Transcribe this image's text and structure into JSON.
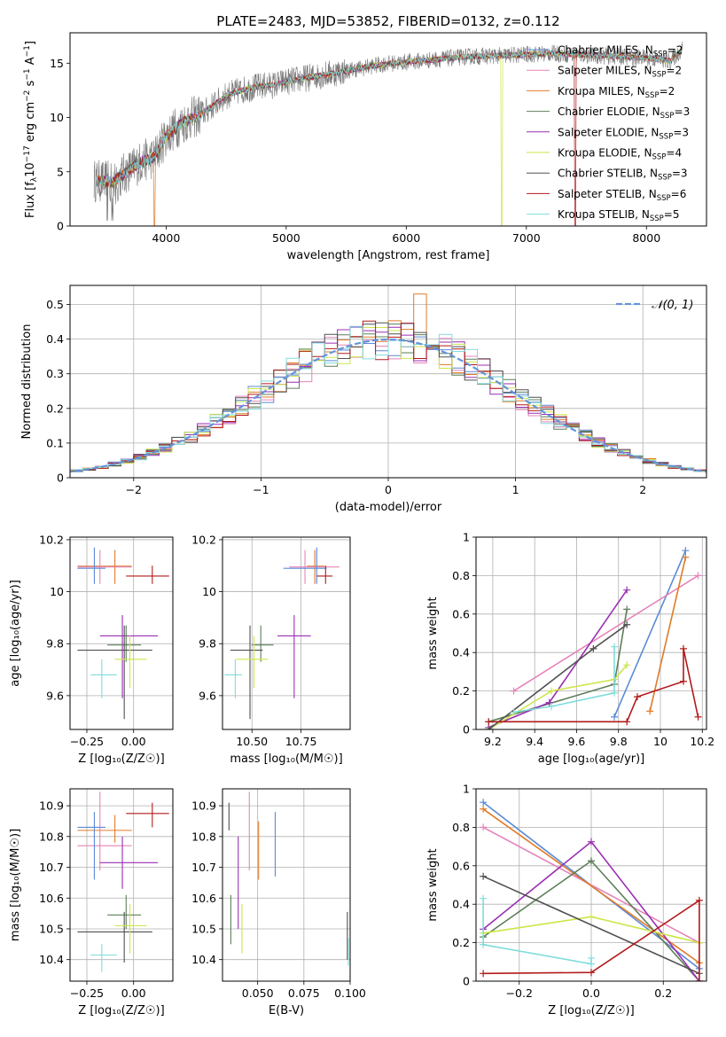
{
  "figure": {
    "title": "PLATE=2483, MJD=53852, FIBERID=0132, z=0.112"
  },
  "colors": {
    "Chabrier MILES": "#5b8bd6",
    "Salpeter MILES": "#e584b9",
    "Kroupa MILES": "#e07b28",
    "Chabrier ELODIE": "#5e7f5a",
    "Salpeter ELODIE": "#9a2fb2",
    "Kroupa ELODIE": "#cde64a",
    "Chabrier STELIB": "#505050",
    "Salpeter STELIB": "#b21a1a",
    "Kroupa STELIB": "#80dcdc",
    "gauss": "#6494dc",
    "grid": "#b0b0b0"
  },
  "chart_data": [
    {
      "id": "spectrum",
      "type": "line",
      "title": "PLATE=2483, MJD=53852, FIBERID=0132, z=0.112",
      "xlabel": "wavelength [Angstrom, rest frame]",
      "ylabel_parts": [
        "Flux [f",
        "λ",
        "10",
        "−17",
        " erg cm",
        "−2",
        " s",
        "−1",
        " A",
        "−1",
        "]"
      ],
      "xlim": [
        3200,
        8500
      ],
      "ylim": [
        0,
        17.8
      ],
      "xticks": [
        4000,
        5000,
        6000,
        7000,
        8000
      ],
      "yticks": [
        0,
        5,
        10,
        15
      ],
      "grid": false,
      "legend_position": "right",
      "legend": [
        {
          "name": "Chabrier MILES",
          "nssp": "2"
        },
        {
          "name": "Salpeter MILES",
          "nssp": "2"
        },
        {
          "name": "Kroupa MILES",
          "nssp": "2"
        },
        {
          "name": "Chabrier ELODIE",
          "nssp": "3"
        },
        {
          "name": "Salpeter ELODIE",
          "nssp": "3"
        },
        {
          "name": "Kroupa ELODIE",
          "nssp": "4"
        },
        {
          "name": "Chabrier STELIB",
          "nssp": "3"
        },
        {
          "name": "Salpeter STELIB",
          "nssp": "6"
        },
        {
          "name": "Kroupa STELIB",
          "nssp": "5"
        }
      ],
      "nssp_label": "N",
      "nssp_sub": "SSP",
      "continuum": {
        "x": [
          3400,
          3550,
          3700,
          3800,
          3900,
          4000,
          4100,
          4200,
          4300,
          4400,
          4500,
          4600,
          4700,
          4800,
          4900,
          5000,
          5200,
          5400,
          5600,
          5800,
          6000,
          6200,
          6500,
          6800,
          7000,
          7200,
          7400,
          7600,
          7800,
          8000,
          8200,
          8300
        ],
        "y": [
          4.2,
          4.0,
          5.2,
          6.0,
          6.3,
          8.3,
          9.2,
          9.9,
          10.3,
          11.2,
          12.0,
          12.4,
          12.7,
          12.9,
          13.0,
          13.3,
          13.7,
          14.1,
          14.5,
          14.9,
          15.1,
          15.3,
          15.6,
          15.7,
          15.8,
          15.9,
          15.8,
          15.7,
          15.6,
          15.5,
          15.2,
          16.3
        ]
      }
    },
    {
      "id": "residuals",
      "type": "histogram",
      "xlabel": "(data-model)/error",
      "ylabel": "Normed distribution",
      "xlim": [
        -2.5,
        2.5
      ],
      "ylim": [
        0,
        0.555
      ],
      "xticks": [
        -2,
        -1,
        0,
        1,
        2
      ],
      "yticks": [
        0.0,
        0.1,
        0.2,
        0.3,
        0.4,
        0.5
      ],
      "grid": true,
      "legend": "𝒩(0, 1)",
      "bin_width": 0.1
    },
    {
      "id": "zage",
      "type": "errorbar",
      "xlabel": "Z [log₁₀(Z/Z☉)]",
      "ylabel": "age  [log₁₀(age/yr)]",
      "xlim": [
        -0.34,
        0.21
      ],
      "ylim": [
        9.47,
        10.21
      ],
      "xticks": [
        -0.25,
        0.0
      ],
      "xticklabels": [
        "−0.25",
        "0.00"
      ],
      "yticks": [
        9.6,
        9.8,
        10.0,
        10.2
      ],
      "grid": true
    },
    {
      "id": "massage",
      "type": "errorbar",
      "xlabel": "mass [log₁₀(M/M☉)]",
      "xlim": [
        10.35,
        11.0
      ],
      "ylim": [
        9.47,
        10.21
      ],
      "xticks": [
        10.5,
        10.75
      ],
      "xticklabels": [
        "10.50",
        "10.75"
      ],
      "yticks": [
        9.6,
        9.8,
        10.0,
        10.2
      ],
      "grid": true
    },
    {
      "id": "agewt",
      "type": "line",
      "xlabel": "age  [log₁₀(age/yr)]",
      "ylabel": "mass weight",
      "xlim": [
        9.12,
        10.22
      ],
      "ylim": [
        0,
        1.0
      ],
      "xticks": [
        9.2,
        9.4,
        9.6,
        9.8,
        10.0,
        10.2
      ],
      "yticks": [
        0.0,
        0.2,
        0.4,
        0.6,
        0.8,
        1.0
      ],
      "grid": true,
      "series": [
        {
          "color_key": "Chabrier MILES",
          "x": [
            9.78,
            10.12
          ],
          "y": [
            0.065,
            0.93
          ]
        },
        {
          "color_key": "Salpeter MILES",
          "x": [
            9.3,
            10.18
          ],
          "y": [
            0.2,
            0.8
          ]
        },
        {
          "color_key": "Kroupa MILES",
          "x": [
            9.95,
            10.12
          ],
          "y": [
            0.095,
            0.895
          ]
        },
        {
          "color_key": "Chabrier ELODIE",
          "x": [
            9.18,
            9.78,
            9.84
          ],
          "y": [
            0.04,
            0.235,
            0.625
          ]
        },
        {
          "color_key": "Salpeter ELODIE",
          "x": [
            9.18,
            9.47,
            9.84
          ],
          "y": [
            0.01,
            0.14,
            0.725
          ]
        },
        {
          "color_key": "Kroupa ELODIE",
          "x": [
            9.18,
            9.48,
            9.78,
            9.84
          ],
          "y": [
            0.0,
            0.2,
            0.26,
            0.335
          ]
        },
        {
          "color_key": "Chabrier STELIB",
          "x": [
            9.18,
            9.68,
            9.84
          ],
          "y": [
            0.0,
            0.42,
            0.545
          ]
        },
        {
          "color_key": "Salpeter STELIB",
          "x": [
            9.18,
            9.84,
            9.89,
            10.11,
            10.11,
            10.18
          ],
          "y": [
            0.04,
            0.04,
            0.17,
            0.25,
            0.42,
            0.065
          ]
        },
        {
          "color_key": "Kroupa STELIB",
          "x": [
            9.3,
            9.48,
            9.78,
            9.78
          ],
          "y": [
            0.09,
            0.12,
            0.19,
            0.43
          ]
        }
      ]
    },
    {
      "id": "zmass",
      "type": "errorbar",
      "xlabel": "Z [log₁₀(Z/Z☉)]",
      "ylabel": "mass [log₁₀(M/M☉)]",
      "xlim": [
        -0.34,
        0.21
      ],
      "ylim": [
        10.33,
        10.955
      ],
      "xticks": [
        -0.25,
        0.0
      ],
      "xticklabels": [
        "−0.25",
        "0.00"
      ],
      "yticks": [
        10.4,
        10.5,
        10.6,
        10.7,
        10.8,
        10.9
      ],
      "grid": true
    },
    {
      "id": "ebvmass",
      "type": "errorbar",
      "xlabel": "E(B-V)",
      "xlim": [
        0.031,
        0.1
      ],
      "ylim": [
        10.33,
        10.955
      ],
      "xticks": [
        0.05,
        0.075,
        0.1
      ],
      "xticklabels": [
        "0.050",
        "0.075",
        "0.100"
      ],
      "yticks": [
        10.4,
        10.5,
        10.6,
        10.7,
        10.8,
        10.9
      ],
      "grid": true,
      "points": [
        {
          "color_key": "Chabrier STELIB",
          "x": 0.0345,
          "lo": 10.82,
          "hi": 10.91
        },
        {
          "color_key": "Chabrier ELODIE",
          "x": 0.0355,
          "lo": 10.45,
          "hi": 10.61
        },
        {
          "color_key": "Salpeter ELODIE",
          "x": 0.0395,
          "lo": 10.5,
          "hi": 10.8
        },
        {
          "color_key": "Kroupa ELODIE",
          "x": 0.0415,
          "lo": 10.42,
          "hi": 10.58
        },
        {
          "color_key": "Salpeter MILES",
          "x": 0.0455,
          "lo": 10.69,
          "hi": 10.945
        },
        {
          "color_key": "Kroupa MILES",
          "x": 0.0505,
          "lo": 10.66,
          "hi": 10.85
        },
        {
          "color_key": "Chabrier MILES",
          "x": 0.0595,
          "lo": 10.67,
          "hi": 10.88
        },
        {
          "color_key": "Chabrier STELIB",
          "x": 0.0985,
          "lo": 10.4,
          "hi": 10.555
        },
        {
          "color_key": "Kroupa STELIB",
          "x": 0.099,
          "lo": 10.38,
          "hi": 10.47
        }
      ]
    },
    {
      "id": "zwt",
      "type": "line",
      "xlabel": "Z [log₁₀(Z/Z☉)]",
      "ylabel": "mass weight",
      "xlim": [
        -0.32,
        0.32
      ],
      "ylim": [
        0,
        1.0
      ],
      "xticks": [
        -0.2,
        0.0,
        0.2
      ],
      "xticklabels": [
        "−0.2",
        "0.0",
        "0.2"
      ],
      "yticks": [
        0.0,
        0.2,
        0.4,
        0.6,
        0.8,
        1.0
      ],
      "grid": true,
      "series": [
        {
          "color_key": "Chabrier MILES",
          "x": [
            -0.3,
            0.3
          ],
          "y": [
            0.93,
            0.065
          ]
        },
        {
          "color_key": "Salpeter MILES",
          "x": [
            -0.3,
            0.3
          ],
          "y": [
            0.8,
            0.2
          ]
        },
        {
          "color_key": "Kroupa MILES",
          "x": [
            -0.3,
            0.3
          ],
          "y": [
            0.895,
            0.095
          ]
        },
        {
          "color_key": "Chabrier ELODIE",
          "x": [
            -0.3,
            0.0,
            0.0,
            0.3
          ],
          "y": [
            0.23,
            0.625,
            0.625,
            0.0
          ]
        },
        {
          "color_key": "Salpeter ELODIE",
          "x": [
            -0.3,
            0.0,
            0.3
          ],
          "y": [
            0.27,
            0.725,
            0.0
          ]
        },
        {
          "color_key": "Kroupa ELODIE",
          "x": [
            -0.3,
            0.0,
            0.3
          ],
          "y": [
            0.25,
            0.335,
            0.2
          ]
        },
        {
          "color_key": "Chabrier STELIB",
          "x": [
            -0.3,
            0.3
          ],
          "y": [
            0.545,
            0.04
          ]
        },
        {
          "color_key": "Salpeter STELIB",
          "x": [
            -0.3,
            0.0,
            0.3,
            0.3
          ],
          "y": [
            0.04,
            0.045,
            0.42,
            0.0
          ]
        },
        {
          "color_key": "Kroupa STELIB",
          "x": [
            -0.3,
            -0.3,
            0.0,
            0.0
          ],
          "y": [
            0.43,
            0.19,
            0.09,
            0.12
          ]
        }
      ]
    }
  ],
  "crosses": [
    {
      "color_key": "Kroupa MILES",
      "z": -0.1,
      "zlo": -0.3,
      "zhi": -0.01,
      "age": 10.098,
      "agelo": 10.03,
      "agehi": 10.16,
      "m": 10.82,
      "mlo": 10.78,
      "mhi": 10.87
    },
    {
      "color_key": "Salpeter MILES",
      "z": -0.18,
      "zlo": -0.3,
      "zhi": -0.01,
      "age": 10.095,
      "agelo": 10.03,
      "agehi": 10.16,
      "m": 10.77,
      "mlo": 10.69,
      "mhi": 10.945
    },
    {
      "color_key": "Chabrier MILES",
      "z": -0.21,
      "zlo": -0.3,
      "zhi": -0.15,
      "age": 10.09,
      "agelo": 10.03,
      "agehi": 10.17,
      "m": 10.83,
      "mlo": 10.66,
      "mhi": 10.88
    },
    {
      "color_key": "Salpeter STELIB",
      "z": 0.1,
      "zlo": -0.04,
      "zhi": 0.19,
      "age": 10.06,
      "agelo": 10.03,
      "agehi": 10.1,
      "m": 10.875,
      "mlo": 10.83,
      "mhi": 10.91
    },
    {
      "color_key": "Salpeter ELODIE",
      "z": -0.06,
      "zlo": -0.18,
      "zhi": 0.13,
      "age": 9.83,
      "agelo": 9.59,
      "agehi": 9.91,
      "m": 10.715,
      "mlo": 10.63,
      "mhi": 10.8
    },
    {
      "color_key": "Chabrier ELODIE",
      "z": -0.04,
      "zlo": -0.14,
      "zhi": 0.04,
      "age": 9.795,
      "agelo": 9.73,
      "agehi": 9.87,
      "m": 10.545,
      "mlo": 10.5,
      "mhi": 10.61
    },
    {
      "color_key": "Chabrier STELIB",
      "z": -0.05,
      "zlo": -0.3,
      "zhi": 0.1,
      "age": 9.775,
      "agelo": 9.51,
      "agehi": 9.87,
      "m": 10.49,
      "mlo": 10.39,
      "mhi": 10.555
    },
    {
      "color_key": "Kroupa ELODIE",
      "z": -0.02,
      "zlo": -0.1,
      "zhi": 0.07,
      "age": 9.74,
      "agelo": 9.63,
      "agehi": 9.83,
      "m": 10.51,
      "mlo": 10.42,
      "mhi": 10.58
    },
    {
      "color_key": "Kroupa STELIB",
      "z": -0.17,
      "zlo": -0.23,
      "zhi": -0.09,
      "age": 9.68,
      "agelo": 9.59,
      "agehi": 9.74,
      "m": 10.415,
      "mlo": 10.36,
      "mhi": 10.45
    }
  ]
}
